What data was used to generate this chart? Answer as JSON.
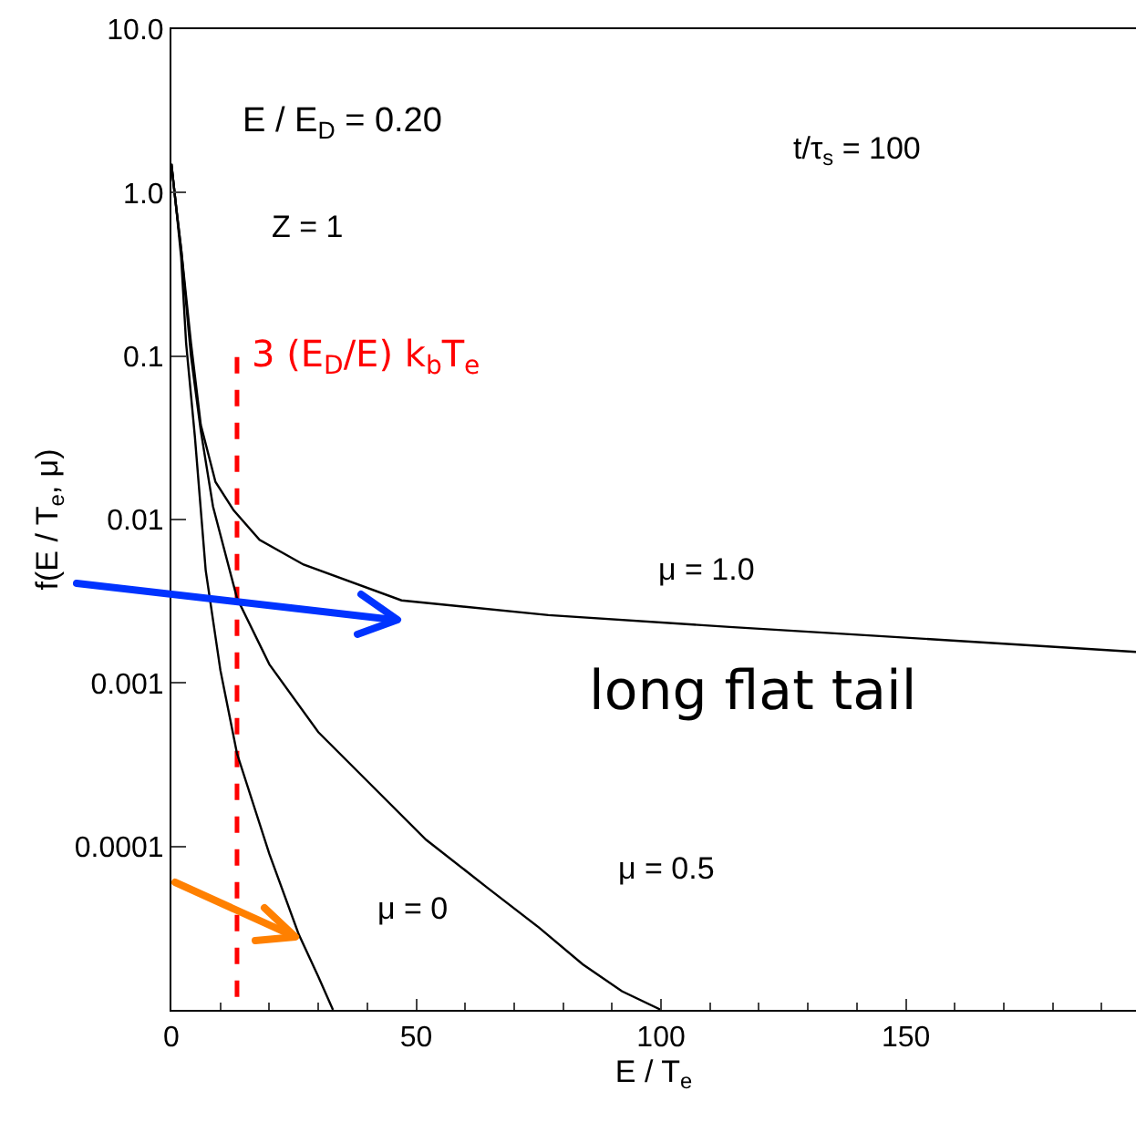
{
  "chart_data": {
    "type": "line",
    "xlabel": "E / T$_{e}$",
    "ylabel": "f(E / T$_{e}$, μ)",
    "log": "y",
    "grid": false,
    "legend": false,
    "marker": "none",
    "line_style": "solid",
    "xlim": [
      0,
      197
    ],
    "ylim": [
      1e-05,
      10
    ],
    "xticks": [
      0,
      50,
      100,
      150
    ],
    "yticks": [
      {
        "value": 10,
        "label": "10.0"
      },
      {
        "value": 1,
        "label": "1.0"
      },
      0.1,
      0.01,
      0.001,
      0.0001
    ],
    "series": [
      {
        "color": "#000000",
        "x": [
          0,
          1,
          2,
          4,
          6,
          9,
          12.7,
          18,
          27,
          47,
          77,
          114,
          137,
          197
        ],
        "values": [
          1.5,
          0.8,
          0.45,
          0.12,
          0.038,
          0.017,
          0.0114,
          0.0075,
          0.0053,
          0.0032,
          0.0026,
          0.0022,
          0.002,
          0.00155
        ]
      },
      {
        "color": "#000000",
        "x": [
          0,
          1,
          2,
          4,
          6,
          8.5,
          13.4,
          20,
          30,
          39.5,
          52,
          64.5,
          75,
          84,
          92,
          100
        ],
        "values": [
          1.5,
          0.8,
          0.45,
          0.1,
          0.035,
          0.012,
          0.0033,
          0.0013,
          0.0005,
          0.00026,
          0.00011,
          5.6e-05,
          3.2e-05,
          1.9e-05,
          1.3e-05,
          1e-05
        ]
      },
      {
        "color": "#000000",
        "x": [
          0,
          1,
          2,
          3,
          4.8,
          7,
          10,
          13.4,
          20,
          26,
          30,
          33
        ],
        "values": [
          1.5,
          0.8,
          0.4,
          0.12,
          0.032,
          0.0049,
          0.0012,
          0.00037,
          9e-05,
          2.9e-05,
          1.6e-05,
          1e-05
        ]
      },
      {
        "name": "3 (E$_{D}$/E) k$_{b}$T$_{e}$",
        "color": "#ff0000",
        "line_style": "dashed",
        "x": [
          13.4,
          13.4
        ],
        "values": [
          1.2e-05,
          0.1
        ]
      }
    ],
    "annotations": [
      "E / E$_{D}$ = 0.20",
      "Z = 1",
      "t/τ$_{s}$ = 100",
      "μ = 1.0",
      "μ = 0.5",
      "μ = 0",
      "long flat tail"
    ]
  }
}
